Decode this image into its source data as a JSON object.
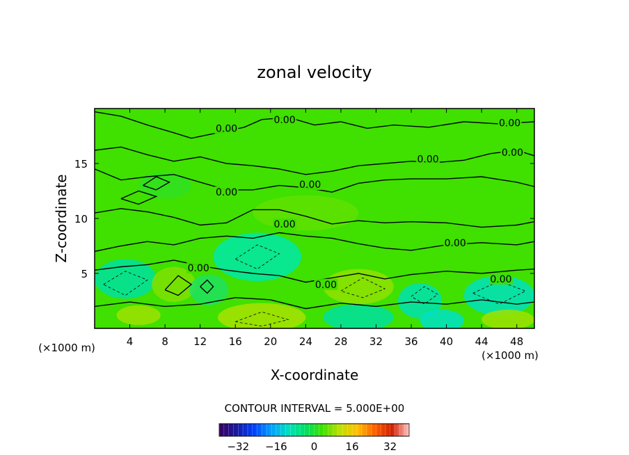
{
  "chart_data": {
    "type": "heatmap",
    "title": "zonal velocity",
    "xlabel": "X-coordinate",
    "ylabel": "Z-coordinate",
    "x_unit": "(×1000 m)",
    "x_unit_right": "(×1000 m)",
    "xlim": [
      0,
      50
    ],
    "ylim": [
      0,
      20
    ],
    "x_ticks": [
      4,
      8,
      12,
      16,
      20,
      24,
      28,
      32,
      36,
      40,
      44,
      48
    ],
    "y_ticks": [
      5,
      10,
      15
    ],
    "contour_interval_text": "CONTOUR INTERVAL = 5.000E+00",
    "contour_labels": [
      {
        "text": "0.00",
        "x": 15.0,
        "y": 18.2
      },
      {
        "text": "0.00",
        "x": 21.6,
        "y": 19.0
      },
      {
        "text": "0.00",
        "x": 24.5,
        "y": 13.1
      },
      {
        "text": "0.00",
        "x": 15.0,
        "y": 12.4
      },
      {
        "text": "0.00",
        "x": 21.6,
        "y": 9.5
      },
      {
        "text": "0.00",
        "x": 11.8,
        "y": 5.5
      },
      {
        "text": "0.00",
        "x": 26.3,
        "y": 4.0
      },
      {
        "text": "0.00",
        "x": 37.9,
        "y": 15.4
      },
      {
        "text": "0.00",
        "x": 41.0,
        "y": 7.8
      },
      {
        "text": "0.00",
        "x": 46.2,
        "y": 4.5
      },
      {
        "text": "0.00",
        "x": 47.2,
        "y": 18.7
      },
      {
        "text": "0.00",
        "x": 47.5,
        "y": 16.0
      }
    ],
    "colorbar": {
      "range": [
        -40,
        40
      ],
      "ticks": [
        -32,
        -16,
        0,
        16,
        32
      ],
      "colors": [
        "#3a0060",
        "#1a1aa0",
        "#0040ff",
        "#00a0ff",
        "#00e0c0",
        "#00e060",
        "#40e000",
        "#c0e000",
        "#ffc000",
        "#ff6000",
        "#d02000",
        "#ffc8c8"
      ]
    }
  }
}
